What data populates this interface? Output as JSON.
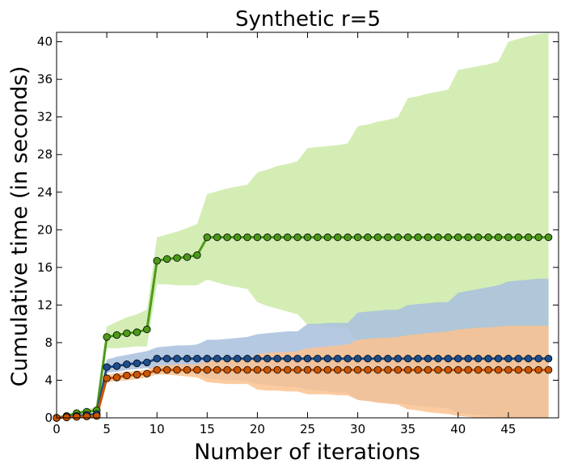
{
  "chart_data": {
    "type": "line",
    "title": "Synthetic r=5",
    "xlabel": "Number of iterations",
    "ylabel": "Cumulative time (in seconds)",
    "xlim": [
      0,
      50
    ],
    "ylim": [
      0,
      41
    ],
    "xticks": [
      0,
      5,
      10,
      15,
      20,
      25,
      30,
      35,
      40,
      45
    ],
    "yticks": [
      0,
      4,
      8,
      12,
      16,
      20,
      24,
      28,
      32,
      36,
      40
    ],
    "grid": false,
    "x": [
      0,
      1,
      2,
      3,
      4,
      5,
      6,
      7,
      8,
      9,
      10,
      11,
      12,
      13,
      14,
      15,
      16,
      17,
      18,
      19,
      20,
      21,
      22,
      23,
      24,
      25,
      26,
      27,
      28,
      29,
      30,
      31,
      32,
      33,
      34,
      35,
      36,
      37,
      38,
      39,
      40,
      41,
      42,
      43,
      44,
      45,
      46,
      47,
      48,
      49
    ],
    "series": [
      {
        "color": "#4d9a1a",
        "band_color": "#cdeaa8",
        "values": [
          0,
          0.2,
          0.5,
          0.65,
          0.8,
          8.6,
          8.8,
          9.0,
          9.1,
          9.4,
          16.7,
          16.9,
          17.0,
          17.1,
          17.3,
          19.2,
          19.2,
          19.2,
          19.2,
          19.2,
          19.2,
          19.2,
          19.2,
          19.2,
          19.2,
          19.2,
          19.2,
          19.2,
          19.2,
          19.2,
          19.2,
          19.2,
          19.2,
          19.2,
          19.2,
          19.2,
          19.2,
          19.2,
          19.2,
          19.2,
          19.2,
          19.2,
          19.2,
          19.2,
          19.2,
          19.2,
          19.2,
          19.2,
          19.2,
          19.2
        ],
        "band_upper": [
          0.1,
          0.3,
          0.7,
          0.9,
          1.2,
          9.7,
          10.2,
          10.7,
          11.0,
          11.5,
          19.2,
          19.5,
          19.8,
          20.2,
          20.6,
          23.8,
          24.1,
          24.4,
          24.6,
          24.8,
          26.1,
          26.4,
          26.8,
          27.0,
          27.3,
          28.7,
          28.8,
          28.9,
          29.0,
          29.2,
          31.0,
          31.2,
          31.5,
          31.7,
          32.0,
          34.0,
          34.2,
          34.5,
          34.7,
          34.9,
          37.0,
          37.2,
          37.4,
          37.6,
          37.9,
          40.0,
          40.3,
          40.6,
          40.8,
          40.9
        ],
        "band_lower": [
          0,
          0.1,
          0.3,
          0.4,
          0.4,
          7.4,
          7.4,
          7.5,
          7.6,
          7.6,
          14.2,
          14.2,
          14.1,
          14.1,
          14.1,
          14.7,
          14.4,
          14.1,
          13.9,
          13.7,
          12.3,
          11.9,
          11.6,
          11.3,
          11.0,
          9.9,
          9.8,
          9.7,
          9.6,
          9.5,
          7.8,
          7.6,
          7.4,
          7.2,
          7.1,
          5.4,
          5.0,
          4.6,
          4.3,
          3.9,
          1.9,
          1.5,
          1.1,
          0.6,
          0.2,
          0,
          0,
          0,
          0,
          0
        ]
      },
      {
        "color": "#1f4e8c",
        "band_color": "#a8c0de",
        "values": [
          0,
          0.1,
          0.2,
          0.3,
          0.4,
          5.4,
          5.5,
          5.7,
          5.8,
          5.9,
          6.3,
          6.3,
          6.3,
          6.3,
          6.3,
          6.3,
          6.3,
          6.3,
          6.3,
          6.3,
          6.3,
          6.3,
          6.3,
          6.3,
          6.3,
          6.3,
          6.3,
          6.3,
          6.3,
          6.3,
          6.3,
          6.3,
          6.3,
          6.3,
          6.3,
          6.3,
          6.3,
          6.3,
          6.3,
          6.3,
          6.3,
          6.3,
          6.3,
          6.3,
          6.3,
          6.3,
          6.3,
          6.3,
          6.3,
          6.3
        ],
        "band_upper": [
          0.1,
          0.2,
          0.3,
          0.4,
          0.5,
          6.2,
          6.5,
          6.7,
          6.9,
          7.1,
          7.5,
          7.6,
          7.7,
          7.7,
          7.8,
          8.3,
          8.3,
          8.4,
          8.5,
          8.6,
          8.9,
          9.0,
          9.1,
          9.2,
          9.2,
          10.0,
          10.0,
          10.1,
          10.1,
          10.1,
          11.2,
          11.3,
          11.4,
          11.5,
          11.5,
          12.0,
          12.1,
          12.2,
          12.3,
          12.3,
          13.3,
          13.5,
          13.7,
          13.9,
          14.1,
          14.5,
          14.6,
          14.7,
          14.8,
          14.8
        ],
        "band_lower": [
          0,
          0.05,
          0.1,
          0.15,
          0.2,
          4.8,
          4.9,
          5.1,
          5.2,
          5.3,
          5.0,
          5.0,
          4.9,
          4.8,
          4.7,
          4.2,
          4.1,
          4.0,
          4.0,
          3.9,
          3.6,
          3.5,
          3.4,
          3.3,
          3.3,
          3.0,
          2.9,
          2.8,
          2.7,
          2.6,
          1.9,
          1.8,
          1.7,
          1.6,
          1.5,
          1.4,
          1.3,
          1.2,
          1.1,
          1.0,
          0.5,
          0.4,
          0.3,
          0.2,
          0.1,
          0,
          0,
          0,
          0,
          0
        ]
      },
      {
        "color": "#cc5500",
        "band_color": "#fcc28f",
        "values": [
          0,
          0.05,
          0.1,
          0.15,
          0.2,
          4.2,
          4.3,
          4.5,
          4.6,
          4.7,
          5.1,
          5.1,
          5.1,
          5.1,
          5.1,
          5.1,
          5.1,
          5.1,
          5.1,
          5.1,
          5.1,
          5.1,
          5.1,
          5.1,
          5.1,
          5.1,
          5.1,
          5.1,
          5.1,
          5.1,
          5.1,
          5.1,
          5.1,
          5.1,
          5.1,
          5.1,
          5.1,
          5.1,
          5.1,
          5.1,
          5.1,
          5.1,
          5.1,
          5.1,
          5.1,
          5.1,
          5.1,
          5.1,
          5.1,
          5.1
        ],
        "band_upper": [
          0.05,
          0.1,
          0.2,
          0.25,
          0.3,
          4.6,
          4.8,
          4.9,
          5.0,
          5.1,
          5.6,
          5.6,
          5.7,
          5.7,
          5.7,
          6.0,
          6.1,
          6.1,
          6.2,
          6.2,
          6.8,
          6.9,
          7.0,
          7.0,
          7.1,
          7.4,
          7.5,
          7.6,
          7.7,
          7.8,
          8.3,
          8.4,
          8.5,
          8.5,
          8.6,
          8.8,
          8.9,
          9.0,
          9.1,
          9.2,
          9.4,
          9.5,
          9.6,
          9.6,
          9.7,
          9.8,
          9.8,
          9.8,
          9.8,
          9.8
        ],
        "band_lower": [
          0,
          0.02,
          0.05,
          0.08,
          0.1,
          3.8,
          3.9,
          4.0,
          4.1,
          4.3,
          4.6,
          4.6,
          4.5,
          4.4,
          4.3,
          3.8,
          3.7,
          3.6,
          3.6,
          3.6,
          3.0,
          2.9,
          2.9,
          2.8,
          2.8,
          2.5,
          2.5,
          2.5,
          2.4,
          2.4,
          1.9,
          1.8,
          1.6,
          1.5,
          1.4,
          0.9,
          0.8,
          0.6,
          0.5,
          0.4,
          0.2,
          0.1,
          0,
          0,
          0,
          0,
          0,
          0,
          0,
          0
        ]
      }
    ]
  }
}
